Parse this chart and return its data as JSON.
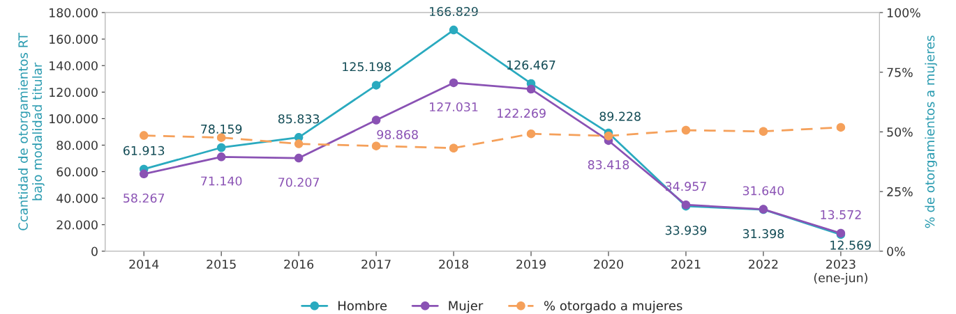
{
  "chart_data": {
    "type": "line",
    "ylabel": "Ccantidad de otorgamientos RT\nbajo modalidad titular",
    "y2label": "% de otorgamientos a mujeres",
    "categories": [
      "2014",
      "2015",
      "2016",
      "2017",
      "2018",
      "2019",
      "2020",
      "2021",
      "2022",
      "2023\n(ene-jun)"
    ],
    "series": [
      {
        "name": "Hombre",
        "color": "#2aaabf",
        "line_style": "solid",
        "values": [
          61913,
          78159,
          85833,
          125198,
          166829,
          126467,
          89228,
          33939,
          31398,
          12569
        ],
        "value_labels": [
          "61.913",
          "78.159",
          "85.833",
          "125.198",
          "166.829",
          "126.467",
          "89.228",
          "33.939",
          "31.398",
          "12.569"
        ]
      },
      {
        "name": "Mujer",
        "color": "#8a52b4",
        "line_style": "solid",
        "values": [
          58267,
          71140,
          70207,
          98868,
          127031,
          122269,
          83418,
          34957,
          31640,
          13572
        ],
        "value_labels": [
          "58.267",
          "71.140",
          "70.207",
          "98.868",
          "127.031",
          "122.269",
          "83.418",
          "34.957",
          "31.640",
          "13.572"
        ]
      },
      {
        "name": "% otorgado a mujeres",
        "color": "#f5a05a",
        "axis": "y2",
        "line_style": "dashed",
        "values": [
          48.5,
          47.6,
          45.0,
          44.1,
          43.2,
          49.2,
          48.3,
          50.7,
          50.2,
          51.9
        ]
      }
    ],
    "ylim": [
      0,
      180000
    ],
    "yticks": [
      {
        "value": 0,
        "label": "0"
      },
      {
        "value": 20000,
        "label": "20.000"
      },
      {
        "value": 40000,
        "label": "40.000"
      },
      {
        "value": 60000,
        "label": "60.000"
      },
      {
        "value": 80000,
        "label": "80.000"
      },
      {
        "value": 100000,
        "label": "100.000"
      },
      {
        "value": 120000,
        "label": "120.000"
      },
      {
        "value": 140000,
        "label": "140.000"
      },
      {
        "value": 160000,
        "label": "160.000"
      },
      {
        "value": 180000,
        "label": "180.000"
      }
    ],
    "y2lim": [
      0,
      100
    ],
    "y2ticks": [
      {
        "value": 0,
        "label": "0%"
      },
      {
        "value": 25,
        "label": "25%"
      },
      {
        "value": 50,
        "label": "50%"
      },
      {
        "value": 75,
        "label": "75%"
      },
      {
        "value": 100,
        "label": "100%"
      }
    ],
    "marker": "circle",
    "grid": false,
    "legend": "bottom"
  }
}
